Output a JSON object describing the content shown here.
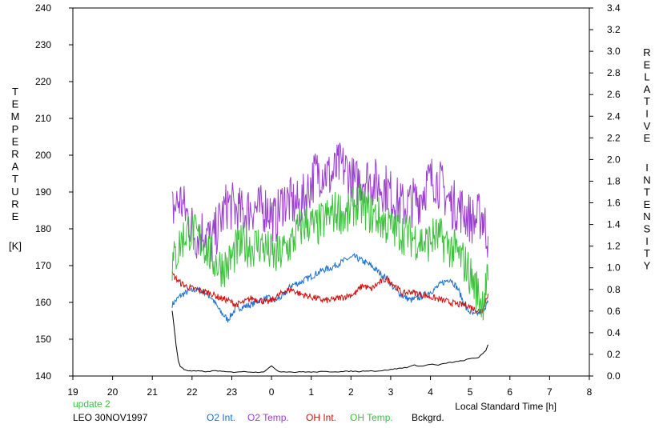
{
  "chart_data": {
    "type": "line",
    "title": "",
    "xlabel": "Local Standard Time [h]",
    "ylabel_left": "TEMPERATURE",
    "ylabel_left_unit": "[K]",
    "ylabel_right_1": "RELATIVE",
    "ylabel_right_2": "INTENSITY",
    "xlim": [
      19,
      32
    ],
    "ylim_left": [
      140,
      240
    ],
    "ylim_right": [
      0.0,
      3.4
    ],
    "x_ticks": [
      19,
      20,
      21,
      22,
      23,
      24,
      25,
      26,
      27,
      28,
      29,
      30,
      31,
      32
    ],
    "x_tick_labels": [
      "19",
      "20",
      "21",
      "22",
      "23",
      "0",
      "1",
      "2",
      "3",
      "4",
      "5",
      "6",
      "7",
      "8"
    ],
    "y_left_ticks": [
      "140",
      "150",
      "160",
      "170",
      "180",
      "190",
      "200",
      "210",
      "220",
      "230",
      "240"
    ],
    "y_right_ticks": [
      "0.0",
      "0.2",
      "0.4",
      "0.6",
      "0.8",
      "1.0",
      "1.2",
      "1.4",
      "1.6",
      "1.8",
      "2.0",
      "2.2",
      "2.4",
      "2.6",
      "2.8",
      "3.0",
      "3.2",
      "3.4"
    ],
    "status": "update 2",
    "site_date": "LEO 30NOV1997",
    "series": [
      {
        "name": "O2 Int.",
        "axis": "right",
        "color": "#1a6fd0",
        "x": [
          21.5,
          21.7,
          21.9,
          22.1,
          22.3,
          22.5,
          22.7,
          22.9,
          23.1,
          23.3,
          23.5,
          23.7,
          23.9,
          24.1,
          24.3,
          24.5,
          24.7,
          24.9,
          25.1,
          25.3,
          25.5,
          25.7,
          25.9,
          26.1,
          26.3,
          26.5,
          26.7,
          26.9,
          27.1,
          27.3,
          27.5,
          27.7,
          27.9,
          28.1,
          28.3,
          28.5,
          28.7,
          28.9,
          29.1,
          29.3,
          29.45
        ],
        "y": [
          0.66,
          0.74,
          0.78,
          0.8,
          0.78,
          0.72,
          0.6,
          0.52,
          0.62,
          0.64,
          0.66,
          0.7,
          0.72,
          0.7,
          0.74,
          0.84,
          0.86,
          0.9,
          0.94,
          0.98,
          1.0,
          1.04,
          1.08,
          1.1,
          1.06,
          1.02,
          0.96,
          0.9,
          0.8,
          0.74,
          0.7,
          0.72,
          0.76,
          0.8,
          0.86,
          0.9,
          0.8,
          0.62,
          0.56,
          0.6,
          0.68
        ]
      },
      {
        "name": "O2 Temp.",
        "axis": "left",
        "color": "#9a3fd0",
        "x": [
          21.5,
          21.7,
          21.9,
          22.1,
          22.3,
          22.5,
          22.7,
          22.9,
          23.1,
          23.3,
          23.5,
          23.7,
          23.9,
          24.1,
          24.3,
          24.5,
          24.7,
          24.9,
          25.1,
          25.3,
          25.5,
          25.7,
          25.9,
          26.1,
          26.3,
          26.5,
          26.7,
          26.9,
          27.1,
          27.3,
          27.5,
          27.7,
          27.9,
          28.1,
          28.3,
          28.5,
          28.7,
          28.9,
          29.1,
          29.3,
          29.45
        ],
        "y": [
          185,
          188,
          183,
          178,
          180,
          176,
          182,
          187,
          185,
          184,
          186,
          185,
          186,
          182,
          188,
          187,
          186,
          190,
          195,
          196,
          194,
          197,
          196,
          192,
          194,
          193,
          192,
          191,
          188,
          186,
          187,
          188,
          192,
          194,
          191,
          187,
          186,
          184,
          182,
          184,
          178
        ]
      },
      {
        "name": "OH Int.",
        "axis": "right",
        "color": "#d01010",
        "x": [
          21.5,
          21.7,
          21.9,
          22.1,
          22.3,
          22.5,
          22.7,
          22.9,
          23.1,
          23.3,
          23.5,
          23.7,
          23.9,
          24.1,
          24.3,
          24.5,
          24.7,
          24.9,
          25.1,
          25.3,
          25.5,
          25.7,
          25.9,
          26.1,
          26.3,
          26.5,
          26.7,
          26.9,
          27.1,
          27.3,
          27.5,
          27.7,
          27.9,
          28.1,
          28.3,
          28.5,
          28.7,
          28.9,
          29.1,
          29.3,
          29.45
        ],
        "y": [
          0.94,
          0.86,
          0.82,
          0.8,
          0.78,
          0.76,
          0.72,
          0.7,
          0.66,
          0.68,
          0.72,
          0.7,
          0.68,
          0.72,
          0.78,
          0.8,
          0.76,
          0.74,
          0.72,
          0.7,
          0.7,
          0.72,
          0.74,
          0.76,
          0.84,
          0.8,
          0.86,
          0.9,
          0.84,
          0.76,
          0.78,
          0.76,
          0.74,
          0.72,
          0.7,
          0.68,
          0.66,
          0.66,
          0.62,
          0.6,
          0.76
        ]
      },
      {
        "name": "OH Temp.",
        "axis": "left",
        "color": "#3cc23c",
        "x": [
          21.5,
          21.7,
          21.9,
          22.1,
          22.3,
          22.5,
          22.7,
          22.9,
          23.1,
          23.3,
          23.5,
          23.7,
          23.9,
          24.1,
          24.3,
          24.5,
          24.7,
          24.9,
          25.1,
          25.3,
          25.5,
          25.7,
          25.9,
          26.1,
          26.3,
          26.5,
          26.7,
          26.9,
          27.1,
          27.3,
          27.5,
          27.7,
          27.9,
          28.1,
          28.3,
          28.5,
          28.7,
          28.9,
          29.1,
          29.3,
          29.45
        ],
        "y": [
          170,
          176,
          180,
          178,
          176,
          172,
          170,
          170,
          174,
          176,
          175,
          176,
          174,
          172,
          174,
          176,
          180,
          182,
          180,
          182,
          184,
          185,
          183,
          187,
          186,
          184,
          183,
          181,
          180,
          179,
          178,
          177,
          176,
          178,
          177,
          175,
          173,
          170,
          165,
          160,
          166
        ]
      },
      {
        "name": "Bckgrd.",
        "axis": "right",
        "color": "#000000",
        "x": [
          21.5,
          21.55,
          21.6,
          21.65,
          21.7,
          21.8,
          21.9,
          22.0,
          22.2,
          22.4,
          22.6,
          22.8,
          23.0,
          23.2,
          23.4,
          23.6,
          23.8,
          24.0,
          24.2,
          24.4,
          24.6,
          24.8,
          25.0,
          25.2,
          25.4,
          25.6,
          25.8,
          26.0,
          26.2,
          26.4,
          26.6,
          26.8,
          27.0,
          27.2,
          27.4,
          27.6,
          27.8,
          28.0,
          28.2,
          28.4,
          28.6,
          28.8,
          29.0,
          29.2,
          29.3,
          29.4,
          29.45
        ],
        "y": [
          0.6,
          0.45,
          0.28,
          0.15,
          0.09,
          0.06,
          0.05,
          0.045,
          0.045,
          0.04,
          0.05,
          0.04,
          0.035,
          0.04,
          0.04,
          0.035,
          0.04,
          0.09,
          0.04,
          0.04,
          0.035,
          0.04,
          0.035,
          0.04,
          0.04,
          0.04,
          0.04,
          0.045,
          0.04,
          0.05,
          0.045,
          0.05,
          0.06,
          0.07,
          0.08,
          0.1,
          0.09,
          0.11,
          0.1,
          0.12,
          0.13,
          0.14,
          0.16,
          0.17,
          0.2,
          0.24,
          0.29
        ]
      }
    ]
  }
}
